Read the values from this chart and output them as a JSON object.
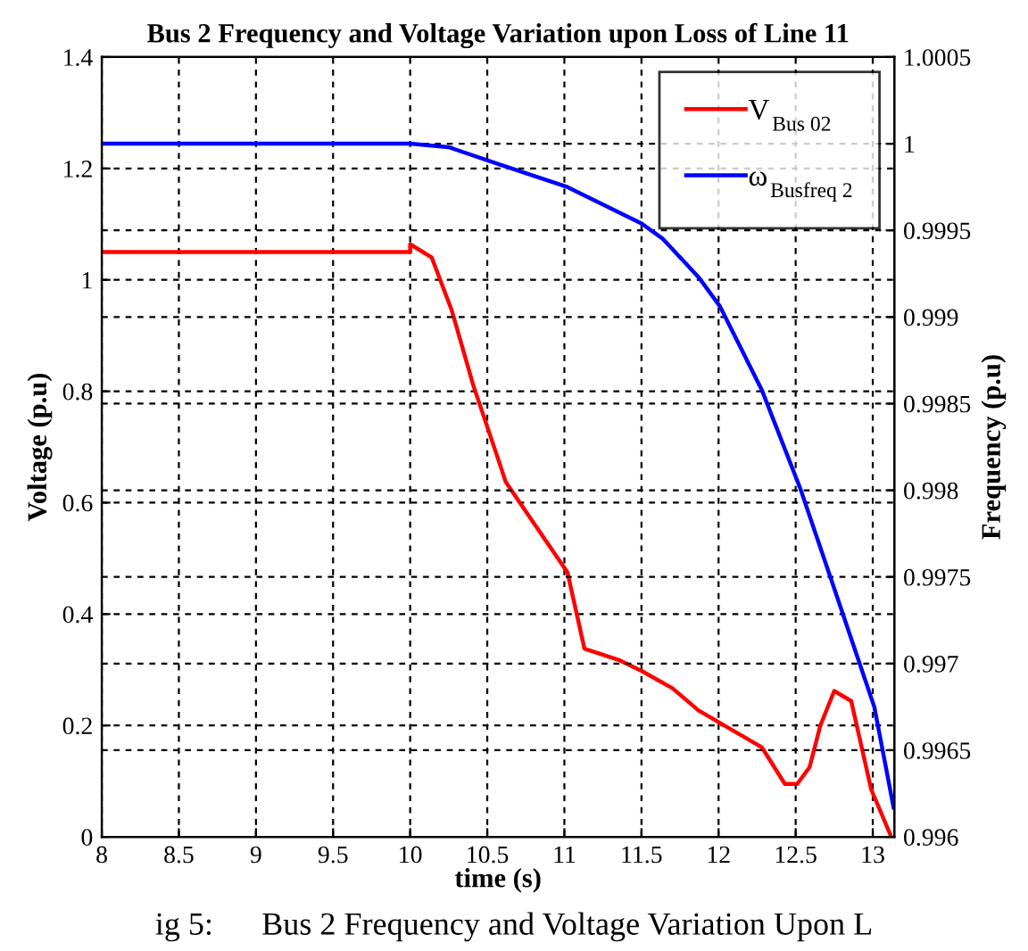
{
  "chart_data": {
    "type": "line",
    "title": "Bus 2 Frequency and Voltage Variation upon Loss of Line 11",
    "xlabel": "time (s)",
    "ylabel": "Voltage (p.u)",
    "y2label": "Frequency (p.u)",
    "series": [
      {
        "name": "V$_{Bus 02}$",
        "color": "#ff0000",
        "x": [
          8,
          10.0,
          10.0,
          10.14,
          10.27,
          10.41,
          10.56,
          10.62,
          10.81,
          11.02,
          11.13,
          11.35,
          11.5,
          11.7,
          11.87,
          12.28,
          12.43,
          12.51,
          12.59,
          12.66,
          12.75,
          12.86,
          12.99,
          13.12
        ],
        "values": [
          1.05,
          1.05,
          1.064,
          1.04,
          0.945,
          0.81,
          0.687,
          0.637,
          0.56,
          0.475,
          0.338,
          0.318,
          0.298,
          0.267,
          0.227,
          0.161,
          0.095,
          0.095,
          0.125,
          0.2,
          0.262,
          0.244,
          0.085,
          0.0
        ]
      },
      {
        "name": "ω$_{Busfreq 2}$",
        "color": "#0000ff",
        "axis": "y2",
        "x": [
          8,
          10.0,
          10.25,
          10.58,
          11.02,
          11.5,
          11.64,
          11.87,
          12.01,
          12.28,
          12.53,
          12.74,
          13.01,
          13.135
        ],
        "values": [
          1.0,
          1.0,
          0.99998,
          0.99988,
          0.99975,
          0.99954,
          0.99945,
          0.99923,
          0.99906,
          0.99858,
          0.99801,
          0.99746,
          0.99675,
          0.99617
        ]
      }
    ],
    "xlim": [
      8,
      13.14
    ],
    "xticks": [
      8,
      8.5,
      9,
      9.5,
      10,
      10.5,
      11,
      11.5,
      12,
      12.5,
      13
    ],
    "ylim": [
      0,
      1.4
    ],
    "yticks": [
      0,
      0.2,
      0.4,
      0.6,
      0.8,
      1,
      1.2,
      1.4
    ],
    "y2lim": [
      0.996,
      1.0005
    ],
    "y2ticks": [
      0.996,
      0.9965,
      0.997,
      0.9975,
      0.998,
      0.9985,
      0.999,
      0.9995,
      1,
      1.0005
    ],
    "grid": true,
    "legend": "top right",
    "line_style": "solid",
    "marker": "none",
    "annotations": [
      "ig 5:      Bus 2 Frequency and Voltage Variation Upon L"
    ]
  }
}
